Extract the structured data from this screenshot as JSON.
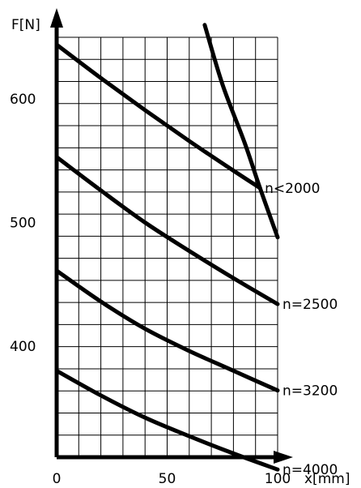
{
  "chart_data": {
    "type": "line",
    "title": "",
    "xlabel": "x[mm]",
    "ylabel": "F[N]",
    "xlim": [
      0,
      100
    ],
    "ylim": [
      310,
      650
    ],
    "grid": true,
    "x_ticks": [
      {
        "value": 0,
        "label": "0"
      },
      {
        "value": 50,
        "label": "50"
      },
      {
        "value": 100,
        "label": "100"
      }
    ],
    "y_ticks": [
      {
        "value": 400,
        "label": "400"
      },
      {
        "value": 500,
        "label": "500"
      },
      {
        "value": 600,
        "label": "600"
      }
    ],
    "series": [
      {
        "name": "n<2000",
        "x": [
          0,
          20,
          40,
          60,
          80,
          92
        ],
        "y": [
          644,
          617,
          591,
          566,
          542,
          528
        ]
      },
      {
        "name": "n=2500",
        "x": [
          0,
          20,
          40,
          60,
          80,
          100
        ],
        "y": [
          553,
          526,
          500,
          477,
          455,
          434
        ]
      },
      {
        "name": "n=3200",
        "x": [
          0,
          20,
          40,
          60,
          80,
          100
        ],
        "y": [
          461,
          436,
          414,
          396,
          380,
          364
        ]
      },
      {
        "name": "n=4000",
        "x": [
          0,
          20,
          40,
          60,
          80,
          100
        ],
        "y": [
          380,
          360,
          342,
          327,
          313,
          300
        ]
      },
      {
        "name": "",
        "x": [
          67,
          75,
          85,
          92,
          100
        ],
        "y": [
          660,
          612,
          565,
          528,
          488
        ]
      }
    ]
  }
}
